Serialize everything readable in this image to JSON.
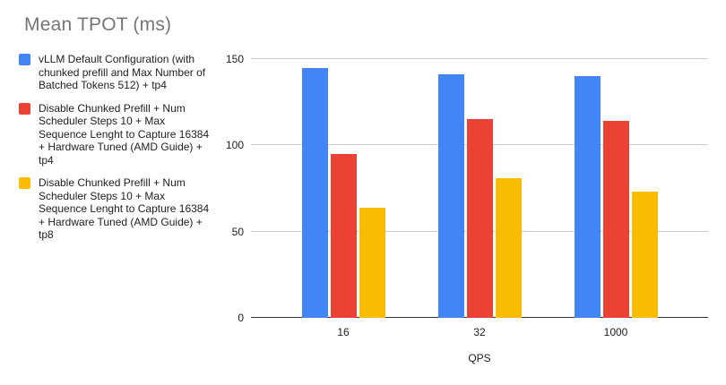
{
  "chart_data": {
    "type": "bar",
    "title": "Mean TPOT (ms)",
    "categories": [
      "16",
      "32",
      "1000"
    ],
    "series": [
      {
        "name": "vLLM Default Configuration (with chunked prefill and Max Number of Batched Tokens 512) + tp4",
        "color": "#4285F4",
        "values": [
          145,
          141,
          140
        ]
      },
      {
        "name": "Disable Chunked Prefill + Num Scheduler Steps 10 + Max Sequence Lenght to Capture 16384 + Hardware Tuned (AMD Guide) + tp4",
        "color": "#EA4335",
        "values": [
          95,
          115,
          114
        ]
      },
      {
        "name": "Disable Chunked Prefill + Num Scheduler Steps 10 + Max Sequence Lenght to Capture 16384 + Hardware Tuned (AMD Guide) + tp8",
        "color": "#FBBC04",
        "values": [
          64,
          81,
          73
        ]
      }
    ],
    "xlabel": "QPS",
    "ylabel": "",
    "ylim": [
      0,
      150
    ],
    "yticks": [
      0,
      50,
      100,
      150
    ],
    "grid": true,
    "legend_position": "left",
    "colors": {
      "grid": "#cccccc",
      "axis": "#333333",
      "title_text": "#757575",
      "label_text": "#202124"
    }
  }
}
